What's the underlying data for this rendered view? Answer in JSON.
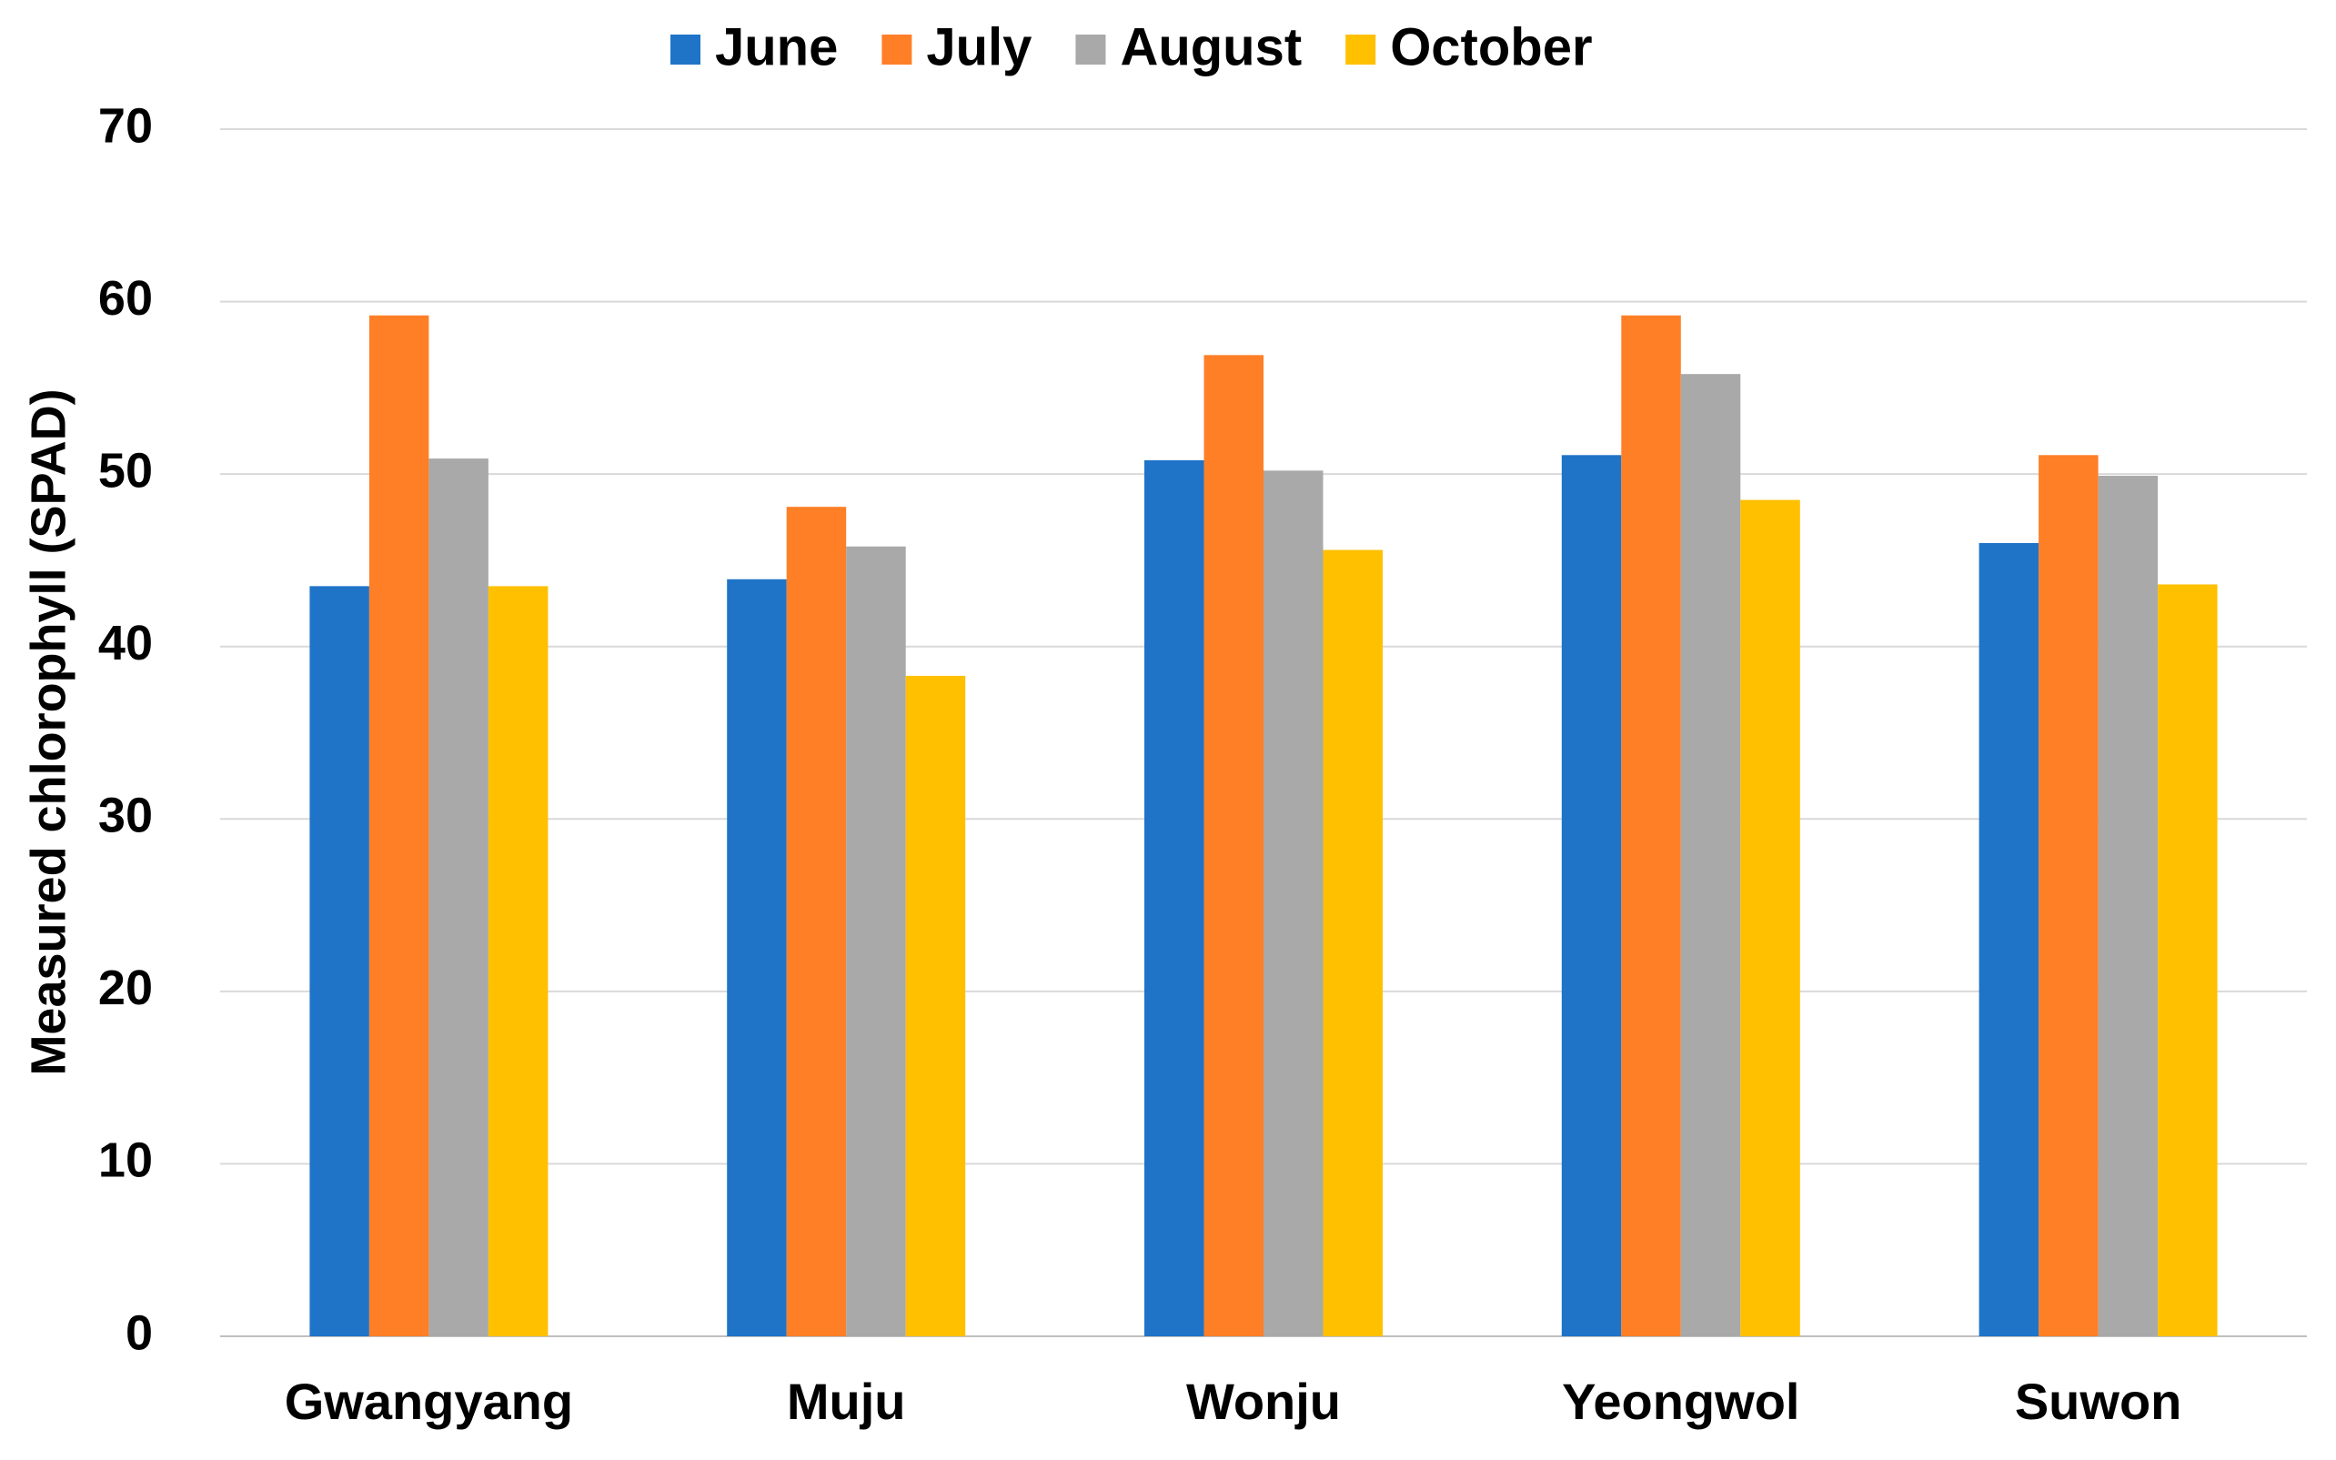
{
  "chart_data": {
    "type": "bar",
    "y_label": "Measured chlorophyll (SPAD)",
    "categories": [
      "Gwangyang",
      "Muju",
      "Wonju",
      "Yeongwol",
      "Suwon"
    ],
    "series": [
      {
        "name": "June",
        "color": "#1f74c8",
        "values": [
          43.5,
          43.9,
          50.8,
          51.1,
          46.0
        ]
      },
      {
        "name": "July",
        "color": "#ff7f27",
        "values": [
          59.2,
          48.1,
          56.9,
          59.2,
          51.1
        ]
      },
      {
        "name": "August",
        "color": "#a9a9a9",
        "values": [
          50.9,
          45.8,
          50.2,
          55.8,
          49.9
        ]
      },
      {
        "name": "October",
        "color": "#ffc000",
        "values": [
          43.5,
          38.3,
          45.6,
          48.5,
          43.6
        ]
      }
    ],
    "ylim": [
      0,
      70
    ],
    "yticks": [
      0,
      10,
      20,
      30,
      40,
      50,
      60,
      70
    ],
    "grid": true,
    "legend": "top"
  }
}
